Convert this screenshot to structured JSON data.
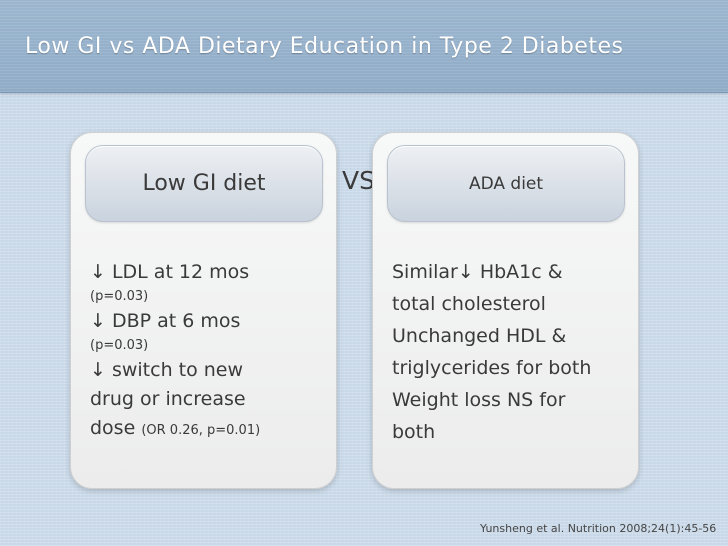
{
  "slide": {
    "title": "Low GI vs ADA Dietary Education in Type 2 Diabetes",
    "vs": "VS",
    "citation": "Yunsheng et al. Nutrition 2008;24(1):45-56"
  },
  "left_panel": {
    "header": "Low GI diet",
    "items": [
      {
        "arrow": "↓",
        "text": " LDL at 12 mos",
        "note": "(p=0.03)"
      },
      {
        "arrow": "↓",
        "text": " DBP at 6 mos",
        "note": "(p=0.03)"
      },
      {
        "arrow": "↓",
        "text": " switch to new",
        "line2": "drug or increase",
        "line3": "dose",
        "note": "(OR 0.26, p=0.01)"
      }
    ]
  },
  "right_panel": {
    "header": "ADA diet",
    "lines": [
      "Similar↓ HbA1c &",
      "total cholesterol",
      "Unchanged HDL &",
      "triglycerides for both",
      "Weight loss NS for",
      "both"
    ]
  }
}
